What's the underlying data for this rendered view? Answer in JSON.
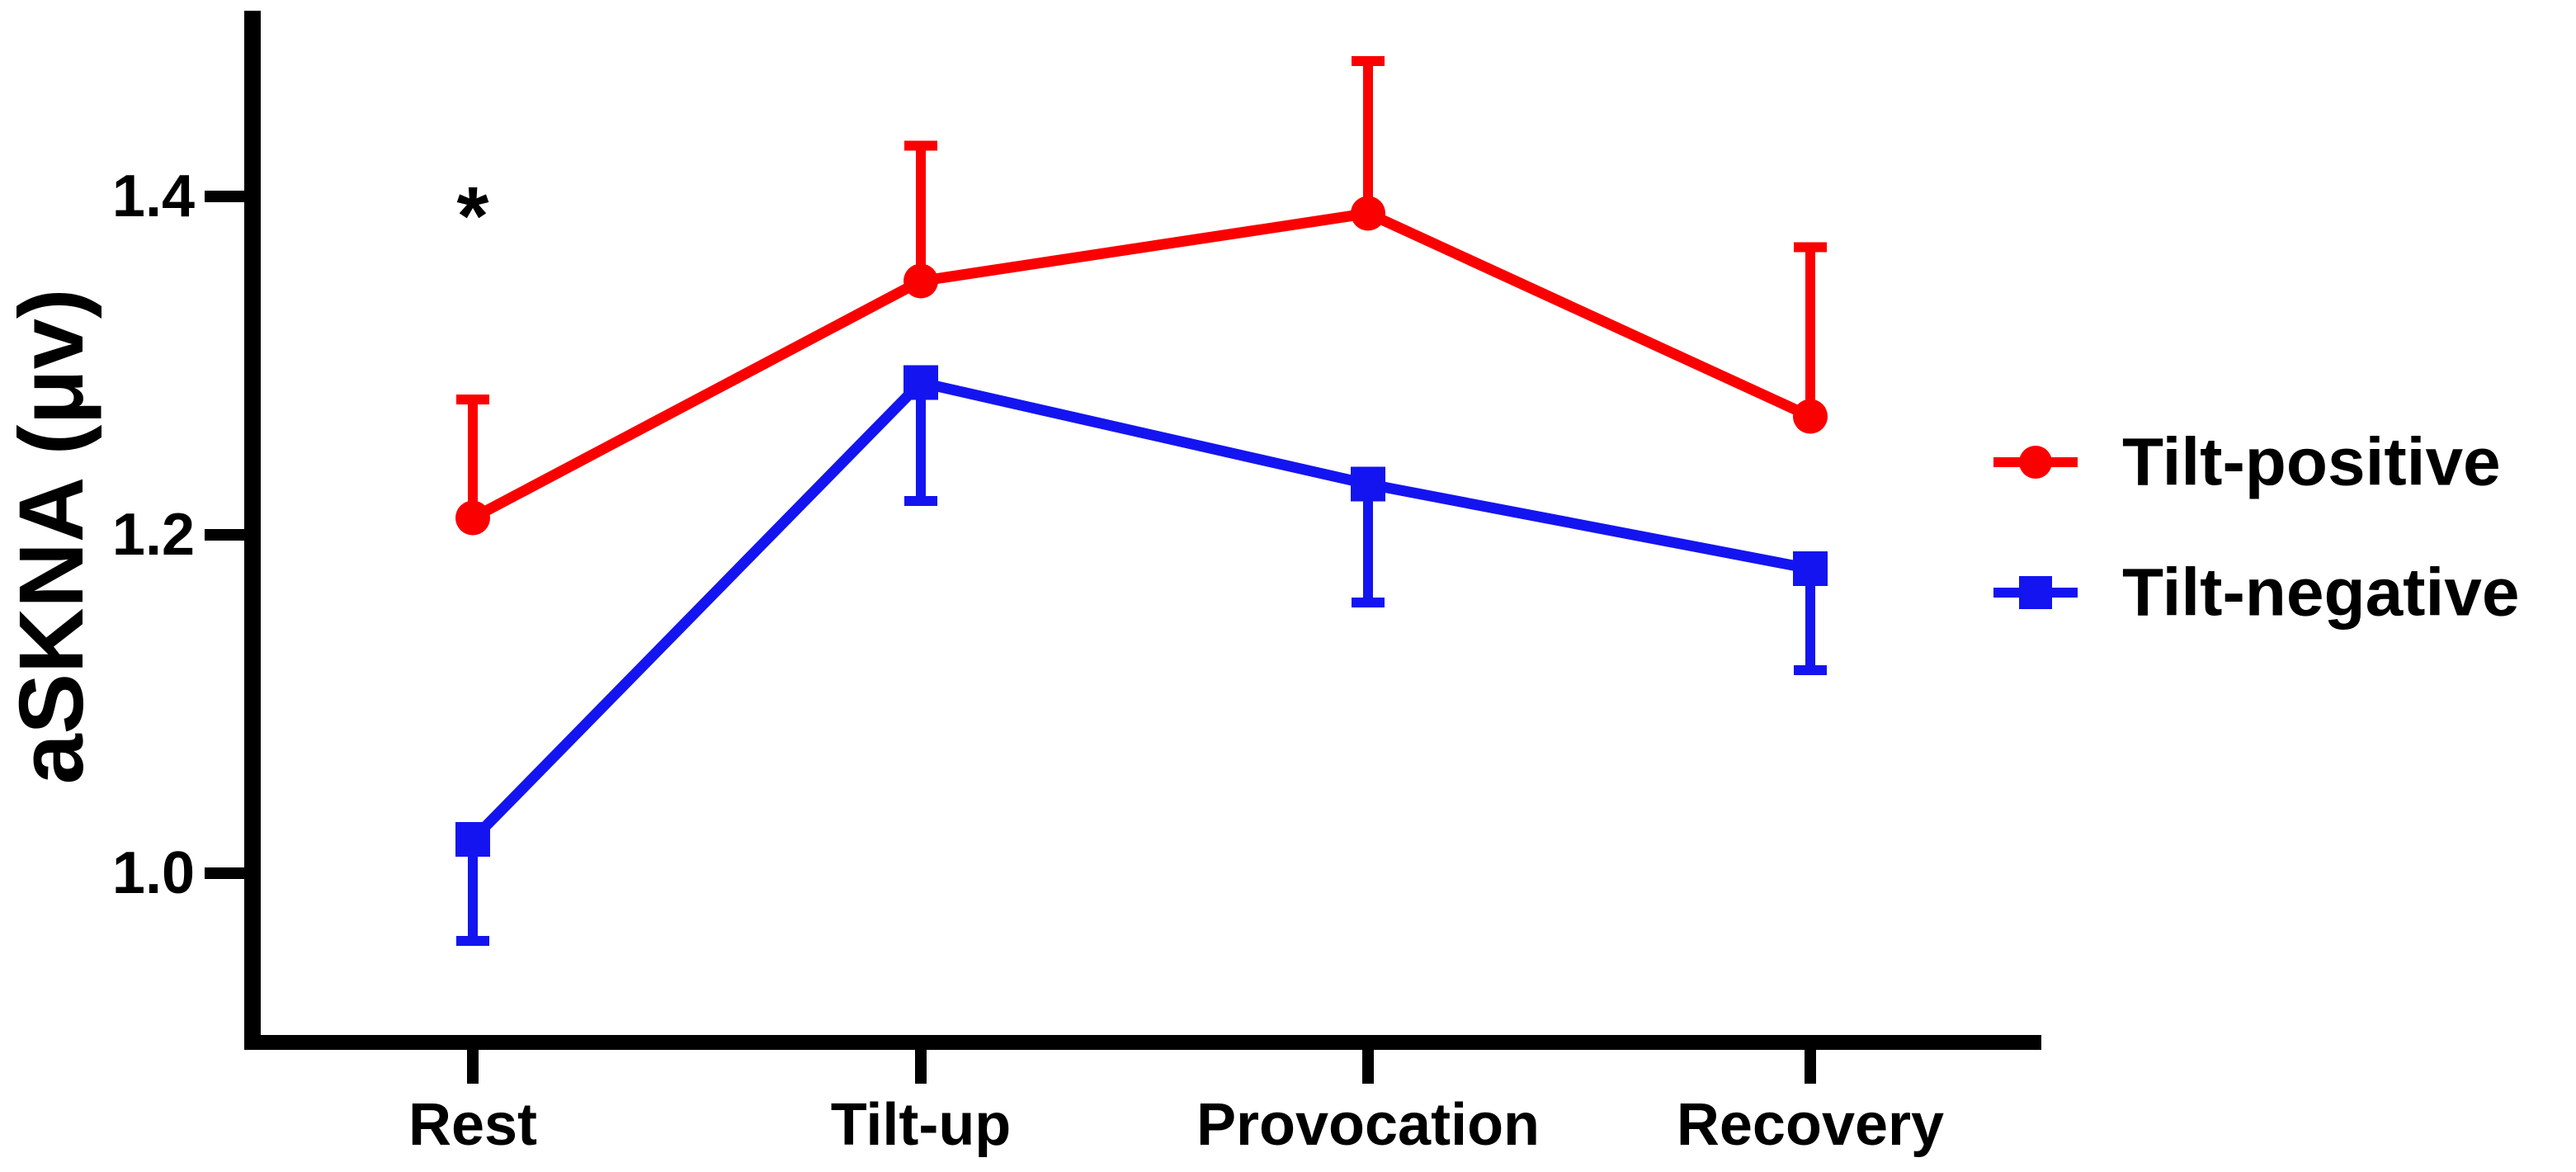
{
  "figure": {
    "background": "#FFFFFF",
    "text_color": "#000000"
  },
  "chart_data": {
    "type": "line",
    "title": "",
    "xlabel": "",
    "ylabel": "aSKNA (μv)",
    "categories": [
      "Rest",
      "Tilt-up",
      "Provocation",
      "Recovery"
    ],
    "series": [
      {
        "name": "Tilt-positive",
        "color": "#FA0000",
        "marker": "circle",
        "values": [
          1.21,
          1.35,
          1.39,
          1.27
        ],
        "errors": [
          0.07,
          0.08,
          0.09,
          0.1
        ],
        "error_direction": "up"
      },
      {
        "name": "Tilt-negative",
        "color": "#1414F0",
        "marker": "square",
        "values": [
          1.02,
          1.29,
          1.23,
          1.18
        ],
        "errors": [
          0.06,
          0.07,
          0.07,
          0.06
        ],
        "error_direction": "down"
      }
    ],
    "yticks": [
      1.0,
      1.2,
      1.4
    ],
    "ytick_labels": [
      "1.0",
      "1.2",
      "1.4"
    ],
    "ylim": [
      0.9,
      1.51
    ],
    "grid": false,
    "legend_position": "right",
    "axis_color": "#000000",
    "annotations": [
      {
        "text": "*",
        "category": "Rest",
        "y": 1.4,
        "color": "#000000"
      }
    ]
  }
}
